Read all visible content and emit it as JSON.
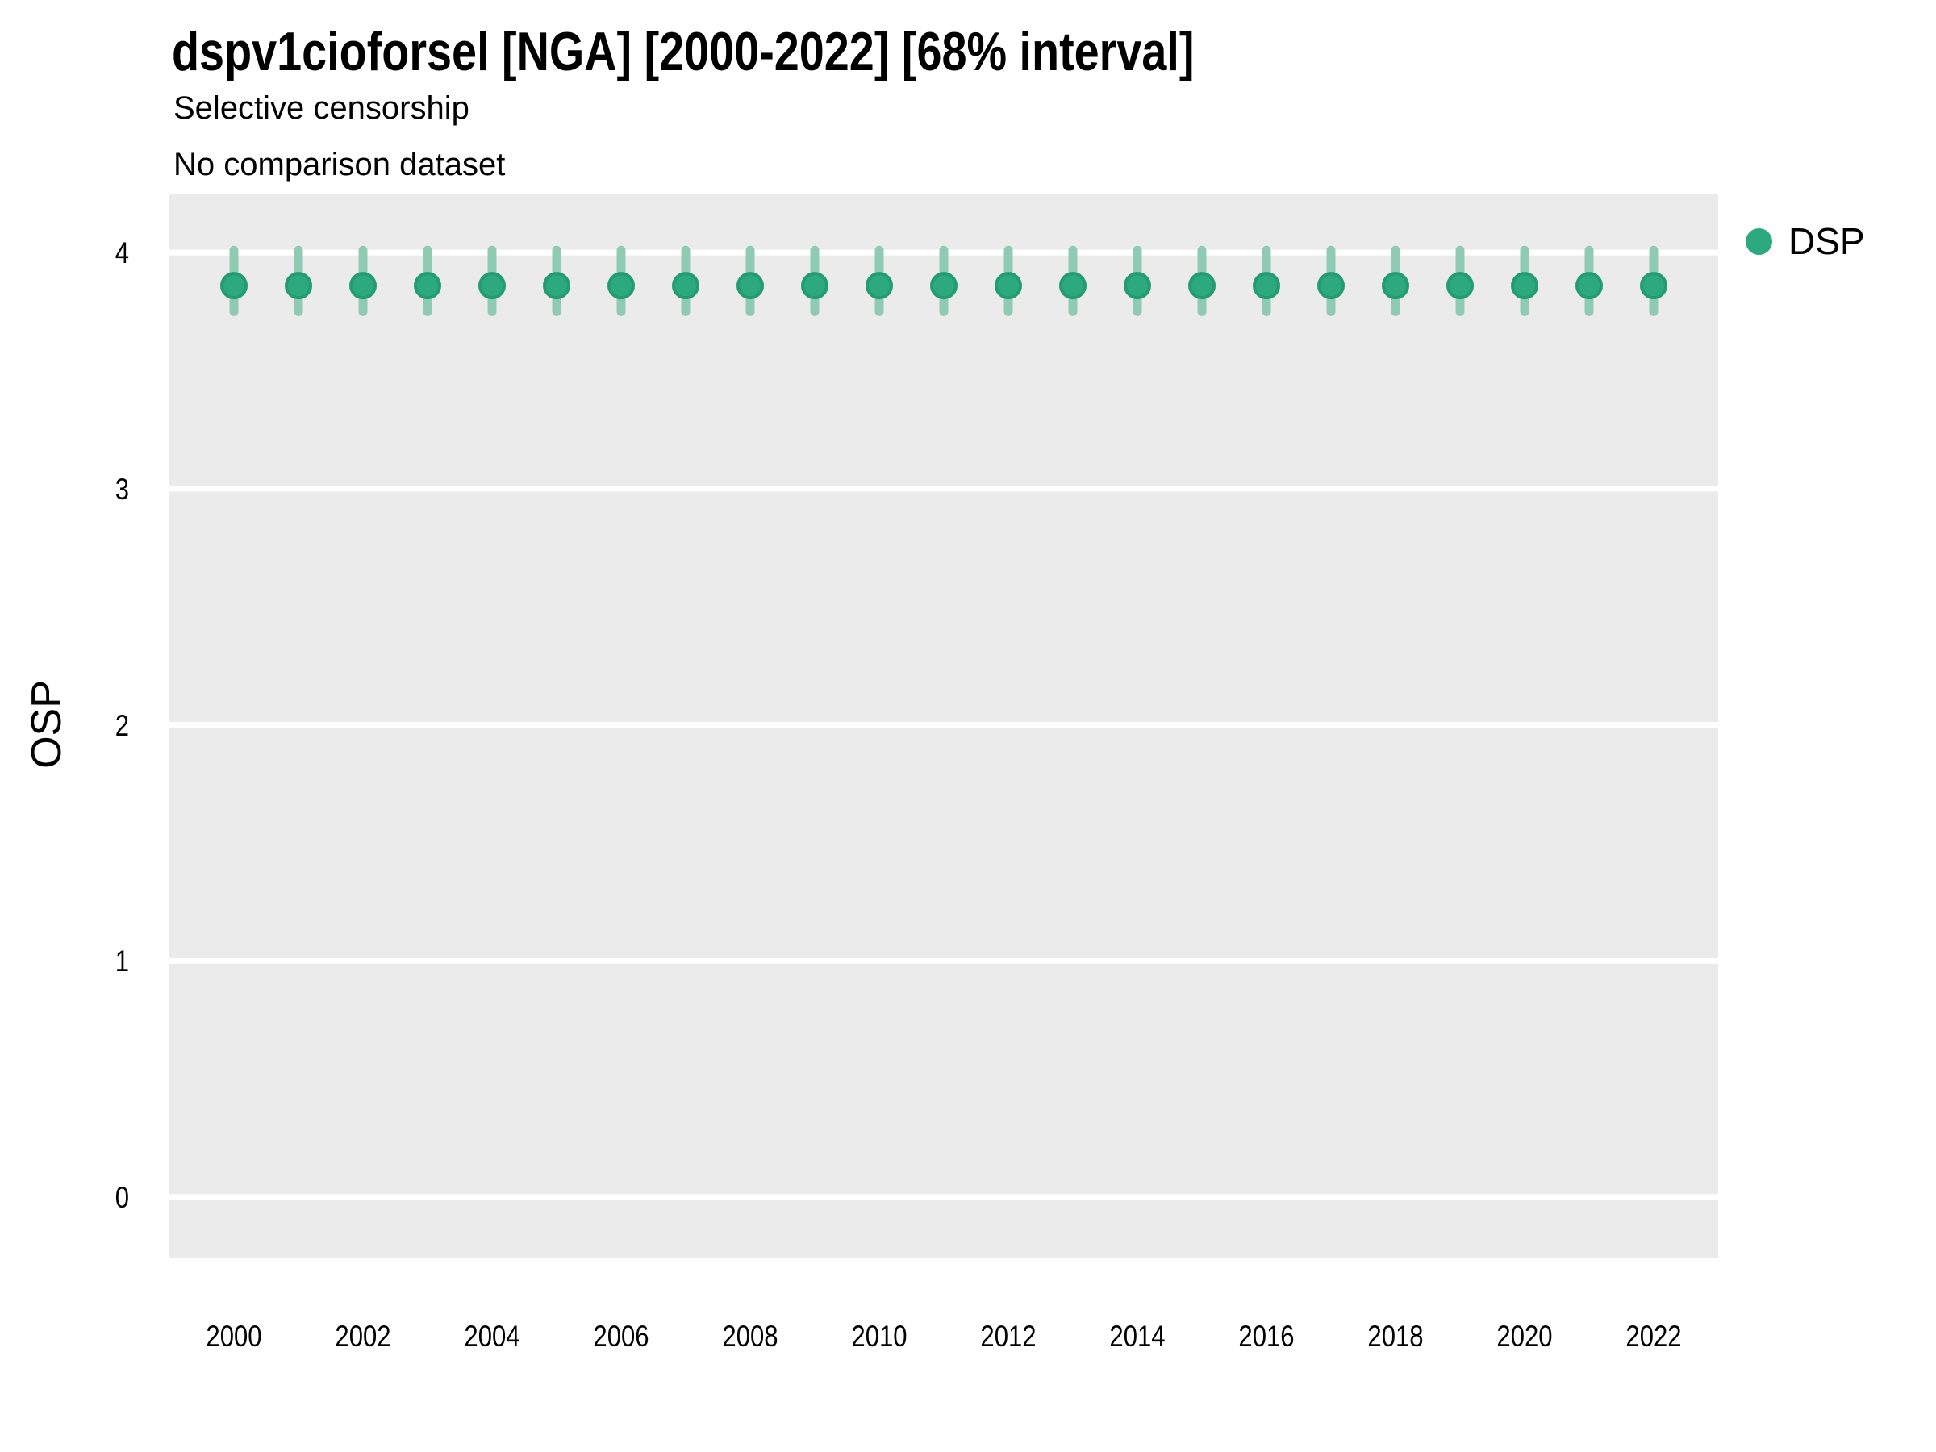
{
  "header": {
    "title": "dspv1cioforsel [NGA] [2000-2022] [68% interval]",
    "subtitle_line1": "Selective censorship",
    "subtitle_line2": "No comparison dataset"
  },
  "legend": {
    "label": "DSP"
  },
  "colors": {
    "panel_bg": "#EBEBEB",
    "gridline": "#FFFFFF",
    "point_fill": "#2CA97E",
    "point_stroke": "#239C72",
    "errorbar": "#8FCBB3",
    "text": "#000000"
  },
  "chart_data": {
    "type": "scatter",
    "title": "dspv1cioforsel [NGA] [2000-2022] [68% interval]",
    "subtitle": "Selective censorship / No comparison dataset",
    "interval": "68%",
    "xlabel": "",
    "ylabel": "OSP",
    "xlim": [
      1999,
      2023
    ],
    "ylim": [
      -0.26,
      4.25
    ],
    "x_ticks": [
      2000,
      2002,
      2004,
      2006,
      2008,
      2010,
      2012,
      2014,
      2016,
      2018,
      2020,
      2022
    ],
    "y_ticks": [
      0,
      1,
      2,
      3,
      4
    ],
    "grid": "horizontal-major-only",
    "legend_position": "right",
    "series": [
      {
        "name": "DSP",
        "x": [
          2000,
          2001,
          2002,
          2003,
          2004,
          2005,
          2006,
          2007,
          2008,
          2009,
          2010,
          2011,
          2012,
          2013,
          2014,
          2015,
          2016,
          2017,
          2018,
          2019,
          2020,
          2021,
          2022
        ],
        "median": [
          3.86,
          3.86,
          3.86,
          3.86,
          3.86,
          3.86,
          3.86,
          3.86,
          3.86,
          3.86,
          3.86,
          3.86,
          3.86,
          3.86,
          3.86,
          3.86,
          3.86,
          3.86,
          3.86,
          3.86,
          3.86,
          3.86,
          3.86
        ],
        "lower": [
          3.75,
          3.75,
          3.75,
          3.75,
          3.75,
          3.75,
          3.75,
          3.75,
          3.75,
          3.75,
          3.75,
          3.75,
          3.75,
          3.75,
          3.75,
          3.75,
          3.75,
          3.75,
          3.75,
          3.75,
          3.75,
          3.75,
          3.75
        ],
        "upper": [
          4.01,
          4.01,
          4.01,
          4.01,
          4.01,
          4.01,
          4.01,
          4.01,
          4.01,
          4.01,
          4.01,
          4.01,
          4.01,
          4.01,
          4.01,
          4.01,
          4.01,
          4.01,
          4.01,
          4.01,
          4.01,
          4.01,
          4.01
        ]
      }
    ]
  }
}
